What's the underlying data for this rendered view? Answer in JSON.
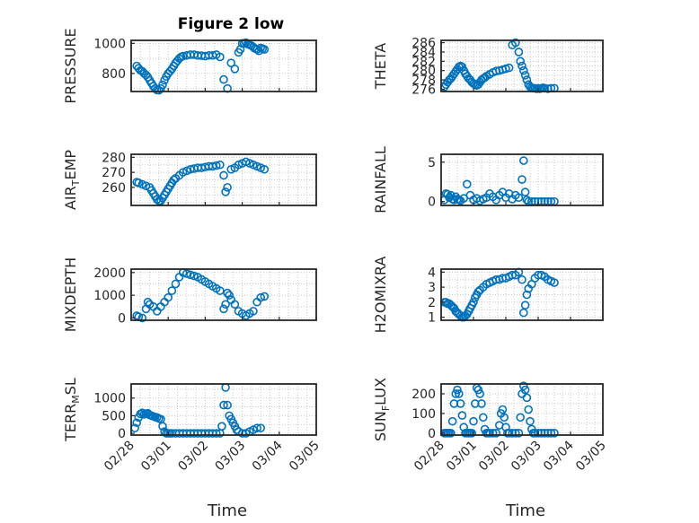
{
  "figure": {
    "title": "Figure 2 low"
  },
  "chart_data": [
    {
      "id": "pressure",
      "type": "scatter",
      "ylabel": "PRESSURE",
      "xlabel": "",
      "xlim": [
        "02/28",
        "03/05"
      ],
      "ylim": [
        680,
        1020
      ],
      "yticks": [
        800,
        1000
      ],
      "xticks": [
        "02/28",
        "03/01",
        "03/02",
        "03/03",
        "03/04",
        "03/05"
      ],
      "grid": true,
      "x": [
        0.15,
        0.2,
        0.25,
        0.3,
        0.35,
        0.4,
        0.45,
        0.5,
        0.55,
        0.6,
        0.65,
        0.7,
        0.75,
        0.8,
        0.85,
        0.9,
        0.95,
        1.0,
        1.05,
        1.1,
        1.15,
        1.2,
        1.25,
        1.3,
        1.35,
        1.4,
        1.5,
        1.6,
        1.7,
        1.8,
        1.9,
        2.0,
        2.1,
        2.2,
        2.3,
        2.4,
        2.5,
        2.6,
        2.7,
        2.8,
        2.9,
        2.95,
        3.0,
        3.05,
        3.1,
        3.15,
        3.2,
        3.25,
        3.3,
        3.35,
        3.4,
        3.45,
        3.5,
        3.55,
        3.6
      ],
      "y": [
        850,
        835,
        820,
        815,
        800,
        790,
        775,
        755,
        735,
        715,
        700,
        690,
        688,
        700,
        725,
        755,
        780,
        800,
        815,
        830,
        850,
        870,
        885,
        900,
        910,
        915,
        920,
        925,
        925,
        920,
        918,
        915,
        920,
        920,
        925,
        910,
        760,
        700,
        870,
        830,
        940,
        960,
        1000,
        1000,
        1005,
        995,
        990,
        985,
        975,
        965,
        960,
        950,
        970,
        965,
        960
      ]
    },
    {
      "id": "theta",
      "type": "scatter",
      "ylabel": "THETA",
      "xlabel": "",
      "xlim": [
        "02/28",
        "03/05"
      ],
      "ylim": [
        275.5,
        286.5
      ],
      "yticks": [
        276,
        278,
        280,
        282,
        284,
        286
      ],
      "xticks": [
        "02/28",
        "03/01",
        "03/02",
        "03/03",
        "03/04",
        "03/05"
      ],
      "grid": true,
      "x": [
        0.1,
        0.15,
        0.2,
        0.25,
        0.3,
        0.35,
        0.4,
        0.45,
        0.5,
        0.55,
        0.6,
        0.65,
        0.7,
        0.75,
        0.8,
        0.85,
        0.9,
        0.95,
        1.0,
        1.05,
        1.1,
        1.15,
        1.2,
        1.25,
        1.3,
        1.35,
        1.4,
        1.5,
        1.6,
        1.7,
        1.8,
        1.9,
        2.0,
        2.1,
        2.2,
        2.3,
        2.4,
        2.45,
        2.5,
        2.55,
        2.6,
        2.65,
        2.7,
        2.75,
        2.8,
        2.85,
        2.9,
        2.95,
        3.0,
        3.05,
        3.1,
        3.15,
        3.2,
        3.3,
        3.4,
        3.5
      ],
      "y": [
        276.5,
        277,
        277.5,
        278,
        278.3,
        278.8,
        279.3,
        279.8,
        280.3,
        280.8,
        281,
        280.8,
        280,
        279.3,
        278.8,
        278.3,
        278,
        277.5,
        277.2,
        277,
        276.8,
        277,
        277.5,
        278,
        278.3,
        278.5,
        278.8,
        279.2,
        279.6,
        279.9,
        280,
        280.2,
        280.4,
        280.6,
        285.5,
        286,
        284,
        282,
        281,
        280,
        279,
        278,
        277,
        276.5,
        276.3,
        276.2,
        276.2,
        276.1,
        276.2,
        276.1,
        276.2,
        276.3,
        276.2,
        276.1,
        276.2,
        276.2
      ]
    },
    {
      "id": "air-temp",
      "type": "scatter",
      "ylabel": "AIR_TEMP",
      "xlabel": "",
      "xlim": [
        "02/28",
        "03/05"
      ],
      "ylim": [
        248,
        282
      ],
      "yticks": [
        260,
        270,
        280
      ],
      "xticks": [
        "02/28",
        "03/01",
        "03/02",
        "03/03",
        "03/04",
        "03/05"
      ],
      "grid": true,
      "x": [
        0.15,
        0.2,
        0.3,
        0.4,
        0.5,
        0.55,
        0.6,
        0.65,
        0.7,
        0.75,
        0.8,
        0.85,
        0.9,
        0.95,
        1.0,
        1.05,
        1.1,
        1.15,
        1.2,
        1.3,
        1.4,
        1.5,
        1.6,
        1.7,
        1.8,
        1.9,
        2.0,
        2.1,
        2.2,
        2.3,
        2.4,
        2.5,
        2.55,
        2.6,
        2.7,
        2.8,
        2.9,
        3.0,
        3.1,
        3.2,
        3.3,
        3.4,
        3.5,
        3.6
      ],
      "y": [
        263.5,
        263,
        262,
        261,
        260,
        258,
        256,
        254,
        252,
        251,
        251,
        253,
        255,
        257,
        259,
        261,
        263,
        265,
        266,
        268,
        270,
        271,
        272,
        272.5,
        273,
        273,
        273.5,
        274,
        274,
        274.5,
        275,
        268,
        257,
        260,
        272,
        273,
        275,
        276,
        277,
        276,
        275,
        274,
        273,
        272
      ]
    },
    {
      "id": "rainfall",
      "type": "scatter",
      "ylabel": "RAINFALL",
      "xlabel": "",
      "xlim": [
        "02/28",
        "03/05"
      ],
      "ylim": [
        -0.5,
        6
      ],
      "yticks": [
        0,
        5
      ],
      "xticks": [
        "02/28",
        "03/01",
        "03/02",
        "03/03",
        "03/04",
        "03/05"
      ],
      "grid": true,
      "x": [
        0.1,
        0.15,
        0.2,
        0.25,
        0.3,
        0.35,
        0.4,
        0.45,
        0.5,
        0.55,
        0.6,
        0.7,
        0.8,
        0.9,
        1.0,
        1.1,
        1.2,
        1.3,
        1.4,
        1.5,
        1.6,
        1.7,
        1.8,
        1.9,
        2.0,
        2.1,
        2.2,
        2.3,
        2.4,
        2.5,
        2.55,
        2.6,
        2.65,
        2.7,
        2.8,
        2.9,
        3.0,
        3.1,
        3.2,
        3.3,
        3.4,
        3.5
      ],
      "y": [
        0.2,
        1.0,
        0.9,
        0.5,
        0.8,
        0.3,
        0.2,
        0.6,
        0.3,
        0.2,
        0.1,
        0.4,
        2.2,
        0.8,
        0.2,
        0.4,
        0.1,
        0.3,
        0.5,
        1.0,
        0.6,
        0.2,
        0.8,
        1.2,
        0.5,
        1.0,
        0.3,
        0.8,
        0.5,
        2.8,
        5.2,
        1.2,
        0.2,
        0,
        0,
        0,
        0,
        0,
        0,
        0,
        0,
        0
      ]
    },
    {
      "id": "mixdepth",
      "type": "scatter",
      "ylabel": "MIXDEPTH",
      "xlabel": "",
      "xlim": [
        "02/28",
        "03/05"
      ],
      "ylim": [
        -100,
        2150
      ],
      "yticks": [
        0,
        1000,
        2000
      ],
      "xticks": [
        "02/28",
        "03/01",
        "03/02",
        "03/03",
        "03/04",
        "03/05"
      ],
      "grid": true,
      "x": [
        0.15,
        0.2,
        0.3,
        0.4,
        0.45,
        0.5,
        0.6,
        0.7,
        0.8,
        0.9,
        1.0,
        1.1,
        1.2,
        1.3,
        1.4,
        1.5,
        1.6,
        1.7,
        1.8,
        1.9,
        2.0,
        2.1,
        2.2,
        2.3,
        2.4,
        2.5,
        2.55,
        2.6,
        2.65,
        2.7,
        2.8,
        2.9,
        3.0,
        3.1,
        3.2,
        3.3,
        3.4,
        3.5,
        3.6
      ],
      "y": [
        100,
        50,
        0,
        400,
        700,
        600,
        500,
        300,
        500,
        700,
        900,
        1200,
        1500,
        1800,
        2000,
        1950,
        1900,
        1850,
        1800,
        1700,
        1600,
        1500,
        1400,
        1300,
        1200,
        400,
        600,
        1100,
        1000,
        800,
        600,
        300,
        200,
        100,
        200,
        300,
        700,
        900,
        950
      ]
    },
    {
      "id": "h2omixra",
      "type": "scatter",
      "ylabel": "H2OMIXRA",
      "xlabel": "",
      "xlim": [
        "02/28",
        "03/05"
      ],
      "ylim": [
        0.8,
        4.2
      ],
      "yticks": [
        1,
        2,
        3,
        4
      ],
      "xticks": [
        "02/28",
        "03/01",
        "03/02",
        "03/03",
        "03/04",
        "03/05"
      ],
      "grid": true,
      "x": [
        0.1,
        0.15,
        0.2,
        0.25,
        0.3,
        0.35,
        0.4,
        0.45,
        0.5,
        0.55,
        0.6,
        0.65,
        0.7,
        0.75,
        0.8,
        0.85,
        0.9,
        0.95,
        1.0,
        1.05,
        1.1,
        1.15,
        1.2,
        1.3,
        1.4,
        1.5,
        1.6,
        1.7,
        1.8,
        1.9,
        2.0,
        2.1,
        2.2,
        2.3,
        2.4,
        2.5,
        2.55,
        2.6,
        2.65,
        2.7,
        2.8,
        2.9,
        3.0,
        3.1,
        3.2,
        3.3,
        3.4,
        3.5
      ],
      "y": [
        2.0,
        2.0,
        1.9,
        1.9,
        1.8,
        1.7,
        1.6,
        1.4,
        1.3,
        1.2,
        1.1,
        1.0,
        1.0,
        1.1,
        1.2,
        1.4,
        1.6,
        1.8,
        2.0,
        2.3,
        2.5,
        2.7,
        2.8,
        3.0,
        3.2,
        3.3,
        3.4,
        3.5,
        3.5,
        3.6,
        3.6,
        3.7,
        3.8,
        3.8,
        4.0,
        3.5,
        1.3,
        1.8,
        2.5,
        2.9,
        3.2,
        3.6,
        3.8,
        3.8,
        3.7,
        3.5,
        3.4,
        3.3
      ]
    },
    {
      "id": "terr-msl",
      "type": "scatter",
      "ylabel": "TERR_MSL",
      "xlabel": "Time",
      "xlim": [
        "02/28",
        "03/05"
      ],
      "ylim": [
        -50,
        1400
      ],
      "yticks": [
        0,
        500,
        1000
      ],
      "xticks": [
        "02/28",
        "03/01",
        "03/02",
        "03/03",
        "03/04",
        "03/05"
      ],
      "grid": true,
      "x": [
        0.1,
        0.15,
        0.2,
        0.25,
        0.3,
        0.35,
        0.4,
        0.45,
        0.5,
        0.55,
        0.6,
        0.65,
        0.7,
        0.75,
        0.8,
        0.85,
        0.9,
        0.95,
        1.0,
        1.05,
        1.1,
        1.2,
        1.3,
        1.4,
        1.5,
        1.6,
        1.7,
        1.8,
        1.9,
        2.0,
        2.1,
        2.2,
        2.3,
        2.4,
        2.45,
        2.5,
        2.55,
        2.6,
        2.65,
        2.7,
        2.75,
        2.8,
        2.85,
        2.9,
        3.0,
        3.1,
        3.2,
        3.3,
        3.4,
        3.5
      ],
      "y": [
        150,
        300,
        450,
        550,
        580,
        540,
        560,
        570,
        520,
        500,
        480,
        460,
        450,
        420,
        400,
        200,
        50,
        0,
        0,
        0,
        0,
        0,
        0,
        0,
        0,
        0,
        0,
        0,
        0,
        0,
        0,
        0,
        0,
        0,
        200,
        800,
        1300,
        800,
        500,
        400,
        300,
        200,
        100,
        50,
        0,
        0,
        50,
        100,
        150,
        150
      ]
    },
    {
      "id": "sun-flux",
      "type": "scatter",
      "ylabel": "SUN_FLUX",
      "xlabel": "Time",
      "xlim": [
        "02/28",
        "03/05"
      ],
      "ylim": [
        -10,
        250
      ],
      "yticks": [
        0,
        100,
        200
      ],
      "xticks": [
        "02/28",
        "03/01",
        "03/02",
        "03/03",
        "03/04",
        "03/05"
      ],
      "grid": true,
      "x": [
        0.1,
        0.15,
        0.2,
        0.25,
        0.3,
        0.35,
        0.4,
        0.45,
        0.5,
        0.55,
        0.6,
        0.65,
        0.7,
        0.75,
        0.8,
        0.85,
        0.9,
        0.95,
        1.0,
        1.05,
        1.1,
        1.15,
        1.2,
        1.25,
        1.3,
        1.35,
        1.4,
        1.45,
        1.5,
        1.6,
        1.7,
        1.8,
        1.85,
        1.9,
        1.95,
        2.0,
        2.05,
        2.1,
        2.2,
        2.3,
        2.4,
        2.45,
        2.5,
        2.55,
        2.6,
        2.65,
        2.7,
        2.75,
        2.8,
        2.85,
        2.9,
        3.0,
        3.1,
        3.2,
        3.3,
        3.4,
        3.5
      ],
      "y": [
        0,
        0,
        0,
        0,
        0,
        60,
        150,
        200,
        220,
        200,
        150,
        90,
        30,
        0,
        0,
        0,
        0,
        0,
        60,
        150,
        230,
        220,
        200,
        150,
        80,
        20,
        0,
        0,
        0,
        0,
        0,
        40,
        100,
        120,
        80,
        30,
        0,
        0,
        0,
        0,
        0,
        80,
        200,
        240,
        220,
        180,
        120,
        60,
        20,
        0,
        0,
        0,
        0,
        0,
        0,
        0,
        0
      ]
    }
  ]
}
